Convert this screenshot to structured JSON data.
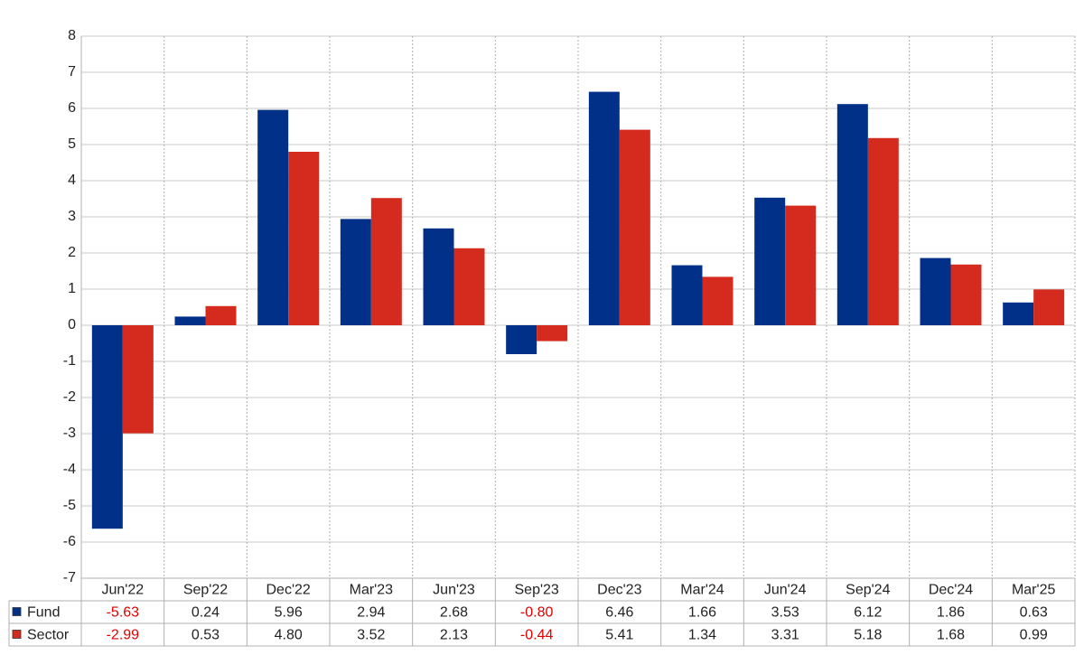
{
  "chart_data": {
    "type": "bar",
    "categories": [
      "Jun'22",
      "Sep'22",
      "Dec'22",
      "Mar'23",
      "Jun'23",
      "Sep'23",
      "Dec'23",
      "Mar'24",
      "Jun'24",
      "Sep'24",
      "Dec'24",
      "Mar'25"
    ],
    "series": [
      {
        "name": "Fund",
        "color": "#003087",
        "values": [
          -5.63,
          0.24,
          5.96,
          2.94,
          2.68,
          -0.8,
          6.46,
          1.66,
          3.53,
          6.12,
          1.86,
          0.63
        ],
        "value_labels": [
          "-5.63",
          "0.24",
          "5.96",
          "2.94",
          "2.68",
          "-0.80",
          "6.46",
          "1.66",
          "3.53",
          "6.12",
          "1.86",
          "0.63"
        ]
      },
      {
        "name": "Sector",
        "color": "#d52b1e",
        "values": [
          -2.99,
          0.53,
          4.8,
          3.52,
          2.13,
          -0.44,
          5.41,
          1.34,
          3.31,
          5.18,
          1.68,
          0.99
        ],
        "value_labels": [
          "-2.99",
          "0.53",
          "4.80",
          "3.52",
          "2.13",
          "-0.44",
          "5.41",
          "1.34",
          "3.31",
          "5.18",
          "1.68",
          "0.99"
        ]
      }
    ],
    "ylim": [
      -7,
      8
    ],
    "yticks": [
      -7,
      -6,
      -5,
      -4,
      -3,
      -2,
      -1,
      0,
      1,
      2,
      3,
      4,
      5,
      6,
      7,
      8
    ],
    "grid": true
  }
}
